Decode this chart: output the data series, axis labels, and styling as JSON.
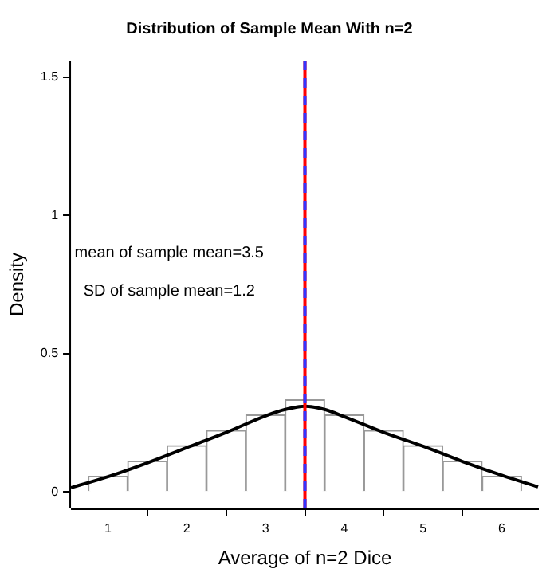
{
  "chart_data": {
    "type": "histogram",
    "title": "Distribution of Sample Mean With n=2",
    "xlabel": "Average of n=2 Dice",
    "ylabel": "Density",
    "bins": [
      0.75,
      1.25,
      1.75,
      2.25,
      2.75,
      3.25,
      3.75,
      4.25,
      4.75,
      5.25,
      5.75,
      6.25
    ],
    "values": [
      0.056,
      0.111,
      0.167,
      0.222,
      0.278,
      0.333,
      0.278,
      0.222,
      0.167,
      0.111,
      0.056
    ],
    "color": "#ffffff",
    "series": [
      {
        "type": "line",
        "color": "#000000",
        "x": [
          0.53,
          1,
          1.5,
          2,
          2.5,
          3,
          3.25,
          3.5,
          3.75,
          4,
          4.5,
          5,
          5.5,
          6,
          6.46
        ],
        "values": [
          0.015,
          0.055,
          0.105,
          0.16,
          0.215,
          0.275,
          0.298,
          0.31,
          0.298,
          0.272,
          0.215,
          0.165,
          0.11,
          0.06,
          0.018
        ]
      }
    ],
    "ref_lines": [
      {
        "axis": "x",
        "value": 3.5,
        "color": "#ff0000",
        "line_style": "solid"
      },
      {
        "axis": "x",
        "value": 3.5,
        "color": "#3333ff",
        "line_style": "dashed"
      }
    ],
    "annotations": [
      "mean of sample mean=3.5",
      "SD of sample mean=1.2"
    ],
    "xlim": [
      0.53,
      6.47
    ],
    "xticks": [
      1,
      2,
      3,
      4,
      5,
      6
    ],
    "ylim": [
      -0.06,
      1.56
    ],
    "yticks": [
      0,
      0.5,
      1,
      1.5
    ],
    "grid": false,
    "legend": false
  }
}
